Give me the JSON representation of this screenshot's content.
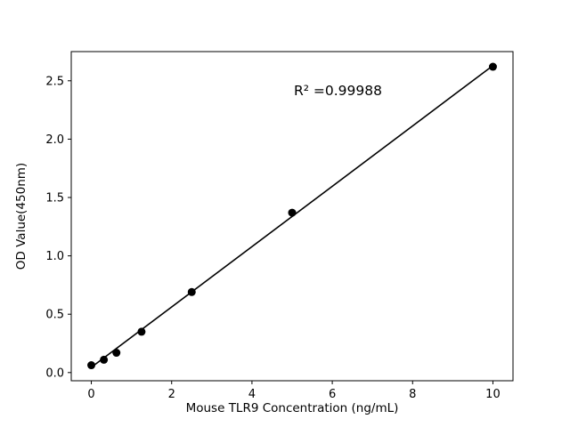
{
  "chart_data": {
    "type": "scatter",
    "title": "",
    "xlabel": "Mouse TLR9 Concentration (ng/mL)",
    "ylabel": "OD Value(450nm)",
    "annotation": "R² =0.99988",
    "x": [
      0,
      0.3125,
      0.625,
      1.25,
      2.5,
      5,
      10
    ],
    "y": [
      0.063,
      0.11,
      0.17,
      0.35,
      0.69,
      1.37,
      2.62
    ],
    "fit_line": {
      "x": [
        0,
        10
      ],
      "y": [
        0.045,
        2.63
      ]
    },
    "xlim": [
      -0.5,
      10.5
    ],
    "ylim": [
      -0.07,
      2.75
    ],
    "xticks": [
      0,
      2,
      4,
      6,
      8,
      10
    ],
    "xtick_labels": [
      "0",
      "2",
      "4",
      "6",
      "8",
      "10"
    ],
    "yticks": [
      0.0,
      0.5,
      1.0,
      1.5,
      2.0,
      2.5
    ],
    "ytick_labels": [
      "0.0",
      "0.5",
      "1.0",
      "1.5",
      "2.0",
      "2.5"
    ],
    "grid": false,
    "legend": "none",
    "marker_color": "#000000",
    "line_color": "#000000",
    "axis_color": "#000000",
    "background": "#ffffff"
  }
}
